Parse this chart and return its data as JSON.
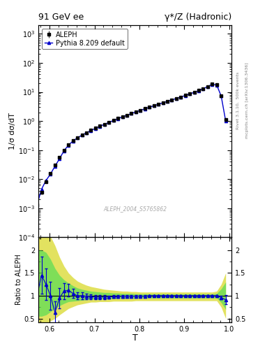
{
  "title_left": "91 GeV ee",
  "title_right": "γ*/Z (Hadronic)",
  "right_label_top": "Rivet 3.1.10,  500k events",
  "right_label_bot": "mcplots.cern.ch [arXiv:1306.3436]",
  "watermark": "ALEPH_2004_S5765862",
  "xlabel": "T",
  "ylabel_main": "1/σ dσ/dT",
  "ylabel_ratio": "Ratio to ALEPH",
  "aleph_T": [
    0.572,
    0.582,
    0.592,
    0.602,
    0.612,
    0.622,
    0.632,
    0.642,
    0.652,
    0.662,
    0.672,
    0.682,
    0.692,
    0.702,
    0.712,
    0.722,
    0.732,
    0.742,
    0.752,
    0.762,
    0.772,
    0.782,
    0.792,
    0.802,
    0.812,
    0.822,
    0.832,
    0.842,
    0.852,
    0.862,
    0.872,
    0.882,
    0.892,
    0.902,
    0.912,
    0.922,
    0.932,
    0.942,
    0.952,
    0.962,
    0.972,
    0.982,
    0.992
  ],
  "aleph_val": [
    0.0013,
    0.0035,
    0.008,
    0.016,
    0.03,
    0.055,
    0.1,
    0.155,
    0.21,
    0.27,
    0.33,
    0.4,
    0.48,
    0.57,
    0.67,
    0.78,
    0.9,
    1.05,
    1.22,
    1.4,
    1.6,
    1.82,
    2.08,
    2.35,
    2.65,
    3.0,
    3.38,
    3.8,
    4.25,
    4.78,
    5.38,
    6.0,
    6.75,
    7.6,
    8.6,
    9.8,
    11.2,
    13.0,
    15.5,
    18.5,
    17.5,
    7.5,
    1.1
  ],
  "aleph_err": [
    0.0003,
    0.0005,
    0.0008,
    0.0012,
    0.0018,
    0.0025,
    0.004,
    0.005,
    0.006,
    0.007,
    0.008,
    0.009,
    0.01,
    0.011,
    0.012,
    0.013,
    0.014,
    0.015,
    0.016,
    0.018,
    0.02,
    0.022,
    0.025,
    0.028,
    0.031,
    0.035,
    0.04,
    0.045,
    0.05,
    0.055,
    0.06,
    0.07,
    0.08,
    0.09,
    0.1,
    0.11,
    0.13,
    0.15,
    0.18,
    0.22,
    0.25,
    0.5,
    0.1
  ],
  "pythia_T": [
    0.572,
    0.582,
    0.592,
    0.602,
    0.612,
    0.622,
    0.632,
    0.642,
    0.652,
    0.662,
    0.672,
    0.682,
    0.692,
    0.702,
    0.712,
    0.722,
    0.732,
    0.742,
    0.752,
    0.762,
    0.772,
    0.782,
    0.792,
    0.802,
    0.812,
    0.822,
    0.832,
    0.842,
    0.852,
    0.862,
    0.872,
    0.882,
    0.892,
    0.902,
    0.912,
    0.922,
    0.932,
    0.942,
    0.952,
    0.962,
    0.972,
    0.982,
    0.992
  ],
  "pythia_val": [
    0.0013,
    0.0045,
    0.009,
    0.015,
    0.028,
    0.05,
    0.095,
    0.148,
    0.205,
    0.265,
    0.325,
    0.395,
    0.47,
    0.56,
    0.66,
    0.77,
    0.89,
    1.04,
    1.21,
    1.39,
    1.58,
    1.8,
    2.06,
    2.33,
    2.63,
    2.97,
    3.35,
    3.77,
    4.22,
    4.74,
    5.33,
    5.95,
    6.7,
    7.55,
    8.55,
    9.75,
    11.1,
    12.9,
    15.4,
    18.3,
    17.3,
    7.2,
    1.0
  ],
  "ratio_T": [
    0.572,
    0.582,
    0.592,
    0.602,
    0.612,
    0.622,
    0.632,
    0.642,
    0.652,
    0.662,
    0.672,
    0.682,
    0.692,
    0.702,
    0.712,
    0.722,
    0.732,
    0.742,
    0.752,
    0.762,
    0.772,
    0.782,
    0.792,
    0.802,
    0.812,
    0.822,
    0.832,
    0.842,
    0.852,
    0.862,
    0.872,
    0.882,
    0.892,
    0.902,
    0.912,
    0.922,
    0.932,
    0.942,
    0.952,
    0.962,
    0.972,
    0.982,
    0.992
  ],
  "ratio_val": [
    1.0,
    1.45,
    1.25,
    1.0,
    0.63,
    0.95,
    1.1,
    1.12,
    1.05,
    1.0,
    1.0,
    0.99,
    0.98,
    0.97,
    0.97,
    0.97,
    0.97,
    0.98,
    0.98,
    0.99,
    0.99,
    0.99,
    0.99,
    0.99,
    0.99,
    1.0,
    1.0,
    1.0,
    1.0,
    1.0,
    1.0,
    1.0,
    1.0,
    1.0,
    1.0,
    1.0,
    1.0,
    1.0,
    1.0,
    1.0,
    1.0,
    0.96,
    0.91
  ],
  "ratio_err": [
    0.4,
    0.4,
    0.35,
    0.3,
    0.25,
    0.22,
    0.18,
    0.14,
    0.1,
    0.08,
    0.07,
    0.06,
    0.05,
    0.05,
    0.04,
    0.04,
    0.03,
    0.03,
    0.03,
    0.03,
    0.02,
    0.02,
    0.02,
    0.02,
    0.02,
    0.02,
    0.02,
    0.02,
    0.02,
    0.02,
    0.02,
    0.02,
    0.02,
    0.02,
    0.02,
    0.02,
    0.02,
    0.02,
    0.02,
    0.02,
    0.02,
    0.04,
    0.1
  ],
  "green_band_lo": [
    0.55,
    0.55,
    0.58,
    0.65,
    0.72,
    0.78,
    0.83,
    0.87,
    0.88,
    0.89,
    0.9,
    0.91,
    0.92,
    0.92,
    0.92,
    0.93,
    0.93,
    0.93,
    0.94,
    0.94,
    0.94,
    0.94,
    0.94,
    0.95,
    0.95,
    0.95,
    0.95,
    0.95,
    0.95,
    0.95,
    0.95,
    0.95,
    0.95,
    0.95,
    0.95,
    0.95,
    0.95,
    0.95,
    0.95,
    0.95,
    0.95,
    0.85,
    0.7
  ],
  "green_band_hi": [
    2.0,
    2.0,
    1.95,
    1.8,
    1.6,
    1.45,
    1.35,
    1.28,
    1.22,
    1.17,
    1.14,
    1.12,
    1.1,
    1.09,
    1.08,
    1.07,
    1.07,
    1.06,
    1.06,
    1.05,
    1.05,
    1.05,
    1.04,
    1.04,
    1.04,
    1.04,
    1.04,
    1.04,
    1.04,
    1.04,
    1.04,
    1.04,
    1.04,
    1.04,
    1.04,
    1.04,
    1.04,
    1.04,
    1.04,
    1.04,
    1.05,
    1.15,
    1.3
  ],
  "yellow_band_lo": [
    0.35,
    0.35,
    0.38,
    0.45,
    0.5,
    0.58,
    0.65,
    0.72,
    0.76,
    0.8,
    0.82,
    0.84,
    0.86,
    0.86,
    0.87,
    0.87,
    0.87,
    0.88,
    0.88,
    0.88,
    0.88,
    0.88,
    0.89,
    0.89,
    0.89,
    0.89,
    0.89,
    0.89,
    0.89,
    0.89,
    0.89,
    0.89,
    0.89,
    0.89,
    0.89,
    0.89,
    0.89,
    0.89,
    0.89,
    0.89,
    0.89,
    0.75,
    0.5
  ],
  "yellow_band_hi": [
    2.5,
    2.5,
    2.45,
    2.3,
    2.1,
    1.85,
    1.65,
    1.5,
    1.4,
    1.32,
    1.27,
    1.23,
    1.2,
    1.18,
    1.16,
    1.14,
    1.13,
    1.12,
    1.11,
    1.1,
    1.1,
    1.09,
    1.09,
    1.08,
    1.08,
    1.08,
    1.08,
    1.08,
    1.08,
    1.08,
    1.08,
    1.08,
    1.08,
    1.08,
    1.08,
    1.08,
    1.08,
    1.08,
    1.08,
    1.08,
    1.1,
    1.25,
    1.5
  ],
  "xlim": [
    0.575,
    1.005
  ],
  "ylim_main": [
    0.0001,
    2000.0
  ],
  "ylim_ratio": [
    0.42,
    2.28
  ],
  "yticks_ratio": [
    0.5,
    1.0,
    1.5,
    2.0
  ],
  "ytick_labels_ratio": [
    "0.5",
    "1",
    "1.5",
    "2"
  ],
  "color_aleph": "#000000",
  "color_pythia": "#0000cc",
  "color_green": "#55dd55",
  "color_yellow": "#dddd44",
  "bg_color": "#ffffff"
}
